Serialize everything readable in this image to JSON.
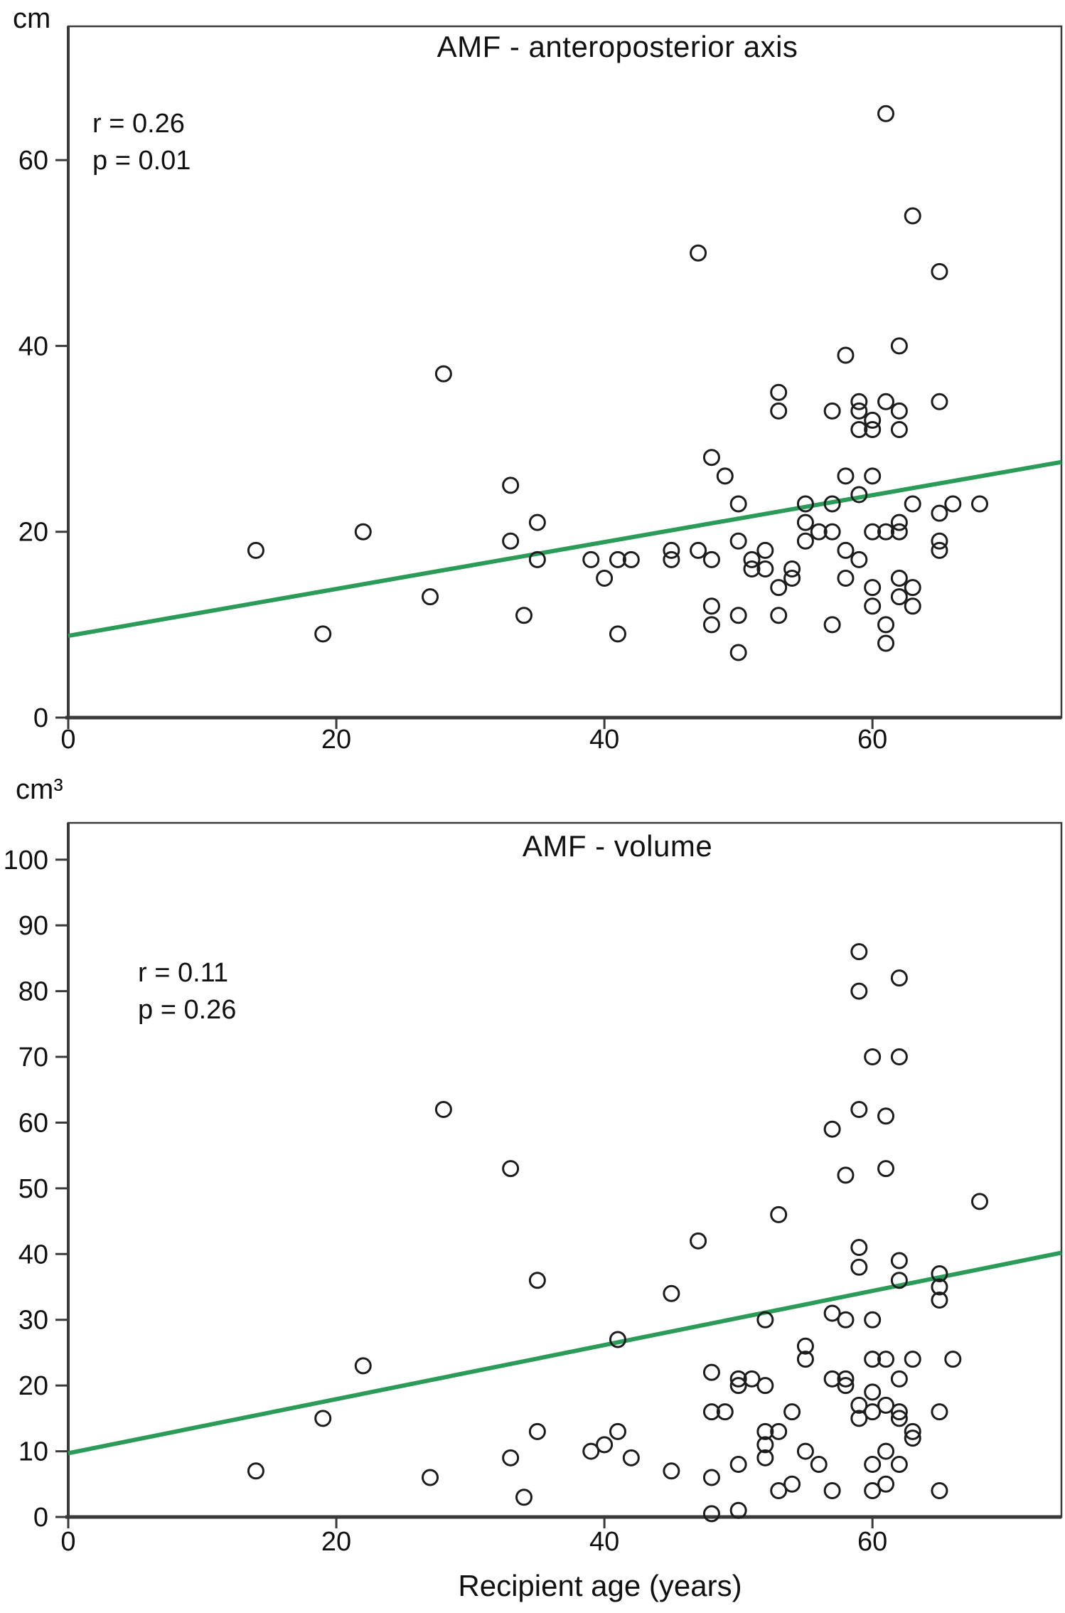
{
  "figure": {
    "x_axis_label": "Recipient age (years)"
  },
  "chart_data": [
    {
      "type": "scatter",
      "title": "AMF - anteroposterior axis",
      "y_unit_label": "cm",
      "xlabel": "Recipient age (years)",
      "annotation": {
        "r_label": "r = 0.26",
        "p_label": "p = 0.01"
      },
      "xlim": [
        0,
        74.1
      ],
      "ylim": [
        0,
        74.4
      ],
      "x_ticks": [
        0,
        20,
        40,
        60
      ],
      "y_ticks": [
        0,
        20,
        40,
        60
      ],
      "grid": false,
      "legend": "none",
      "trendline": {
        "x1": 0,
        "y1": 8.8,
        "x2": 74.1,
        "y2": 27.5
      },
      "points": [
        [
          14,
          18
        ],
        [
          19,
          9
        ],
        [
          22,
          20
        ],
        [
          27,
          13
        ],
        [
          28,
          37
        ],
        [
          33,
          25
        ],
        [
          33,
          19
        ],
        [
          34,
          11
        ],
        [
          35,
          21
        ],
        [
          35,
          17
        ],
        [
          39,
          17
        ],
        [
          40,
          15
        ],
        [
          41,
          17
        ],
        [
          41,
          9
        ],
        [
          42,
          17
        ],
        [
          45,
          18
        ],
        [
          45,
          17
        ],
        [
          47,
          50
        ],
        [
          47,
          18
        ],
        [
          48,
          28
        ],
        [
          48,
          17
        ],
        [
          48,
          12
        ],
        [
          48,
          10
        ],
        [
          49,
          26
        ],
        [
          50,
          23
        ],
        [
          50,
          19
        ],
        [
          50,
          11
        ],
        [
          50,
          7
        ],
        [
          51,
          17
        ],
        [
          51,
          16
        ],
        [
          52,
          18
        ],
        [
          52,
          16
        ],
        [
          53,
          35
        ],
        [
          53,
          33
        ],
        [
          53,
          14
        ],
        [
          53,
          11
        ],
        [
          54,
          16
        ],
        [
          54,
          15
        ],
        [
          55,
          23
        ],
        [
          55,
          21
        ],
        [
          55,
          19
        ],
        [
          56,
          20
        ],
        [
          57,
          33
        ],
        [
          57,
          23
        ],
        [
          57,
          20
        ],
        [
          57,
          10
        ],
        [
          58,
          39
        ],
        [
          58,
          26
        ],
        [
          58,
          18
        ],
        [
          58,
          15
        ],
        [
          59,
          34
        ],
        [
          59,
          33
        ],
        [
          59,
          31
        ],
        [
          59,
          24
        ],
        [
          59,
          17
        ],
        [
          60,
          32
        ],
        [
          60,
          31
        ],
        [
          60,
          26
        ],
        [
          60,
          20
        ],
        [
          60,
          14
        ],
        [
          60,
          12
        ],
        [
          61,
          65
        ],
        [
          61,
          34
        ],
        [
          61,
          20
        ],
        [
          61,
          10
        ],
        [
          61,
          8
        ],
        [
          62,
          40
        ],
        [
          62,
          33
        ],
        [
          62,
          31
        ],
        [
          62,
          21
        ],
        [
          62,
          20
        ],
        [
          62,
          15
        ],
        [
          62,
          13
        ],
        [
          63,
          54
        ],
        [
          63,
          23
        ],
        [
          63,
          14
        ],
        [
          63,
          12
        ],
        [
          65,
          48
        ],
        [
          65,
          34
        ],
        [
          65,
          22
        ],
        [
          65,
          19
        ],
        [
          65,
          18
        ],
        [
          66,
          23
        ],
        [
          68,
          23
        ]
      ],
      "colors": {
        "trend": "#2b9b58",
        "marker": "#1c1c1c",
        "axis": "#3a3a3a"
      }
    },
    {
      "type": "scatter",
      "title": "AMF - volume",
      "y_unit_label": "cm³",
      "xlabel": "Recipient age (years)",
      "annotation": {
        "r_label": "r = 0.11",
        "p_label": "p = 0.26"
      },
      "xlim": [
        0,
        74.1
      ],
      "ylim": [
        0,
        105.6
      ],
      "x_ticks": [
        0,
        20,
        40,
        60
      ],
      "y_ticks": [
        0,
        10,
        20,
        30,
        40,
        50,
        60,
        70,
        80,
        90,
        100
      ],
      "grid": false,
      "legend": "none",
      "trendline": {
        "x1": 0,
        "y1": 9.7,
        "x2": 74.1,
        "y2": 40.2
      },
      "points": [
        [
          14,
          7
        ],
        [
          19,
          15
        ],
        [
          22,
          23
        ],
        [
          27,
          6
        ],
        [
          28,
          62
        ],
        [
          33,
          53
        ],
        [
          33,
          9
        ],
        [
          34,
          3
        ],
        [
          35,
          36
        ],
        [
          35,
          13
        ],
        [
          39,
          10
        ],
        [
          40,
          11
        ],
        [
          41,
          27
        ],
        [
          41,
          13
        ],
        [
          42,
          9
        ],
        [
          45,
          34
        ],
        [
          45,
          7
        ],
        [
          47,
          42
        ],
        [
          48,
          22
        ],
        [
          48,
          16
        ],
        [
          48,
          6
        ],
        [
          48,
          0.5
        ],
        [
          49,
          16
        ],
        [
          50,
          21
        ],
        [
          50,
          20
        ],
        [
          50,
          8
        ],
        [
          50,
          1
        ],
        [
          51,
          21
        ],
        [
          52,
          30
        ],
        [
          52,
          20
        ],
        [
          52,
          13
        ],
        [
          52,
          11
        ],
        [
          52,
          9
        ],
        [
          53,
          46
        ],
        [
          53,
          13
        ],
        [
          53,
          4
        ],
        [
          54,
          16
        ],
        [
          54,
          5
        ],
        [
          55,
          26
        ],
        [
          55,
          24
        ],
        [
          55,
          10
        ],
        [
          56,
          8
        ],
        [
          57,
          59
        ],
        [
          57,
          31
        ],
        [
          57,
          21
        ],
        [
          57,
          4
        ],
        [
          58,
          52
        ],
        [
          58,
          30
        ],
        [
          58,
          21
        ],
        [
          58,
          20
        ],
        [
          59,
          86
        ],
        [
          59,
          80
        ],
        [
          59,
          62
        ],
        [
          59,
          41
        ],
        [
          59,
          38
        ],
        [
          59,
          17
        ],
        [
          59,
          15
        ],
        [
          60,
          70
        ],
        [
          60,
          30
        ],
        [
          60,
          24
        ],
        [
          60,
          19
        ],
        [
          60,
          16
        ],
        [
          60,
          8
        ],
        [
          60,
          4
        ],
        [
          61,
          61
        ],
        [
          61,
          53
        ],
        [
          61,
          24
        ],
        [
          61,
          17
        ],
        [
          61,
          10
        ],
        [
          61,
          5
        ],
        [
          62,
          82
        ],
        [
          62,
          70
        ],
        [
          62,
          39
        ],
        [
          62,
          36
        ],
        [
          62,
          21
        ],
        [
          62,
          16
        ],
        [
          62,
          15
        ],
        [
          62,
          8
        ],
        [
          63,
          24
        ],
        [
          63,
          13
        ],
        [
          63,
          12
        ],
        [
          65,
          37
        ],
        [
          65,
          35
        ],
        [
          65,
          33
        ],
        [
          65,
          16
        ],
        [
          65,
          4
        ],
        [
          66,
          24
        ],
        [
          68,
          48
        ]
      ],
      "colors": {
        "trend": "#2b9b58",
        "marker": "#1c1c1c",
        "axis": "#3a3a3a"
      }
    }
  ]
}
